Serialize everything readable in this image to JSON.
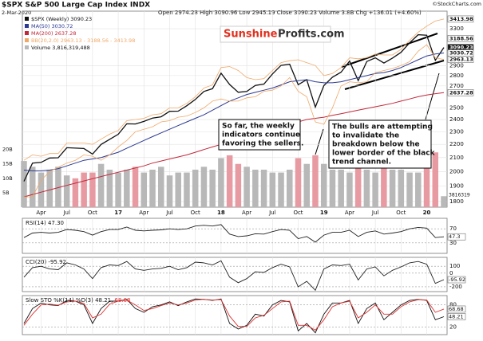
{
  "chart_data": [
    {
      "type": "line",
      "title": "$SPX S&P 500 Large Cap Index INDX",
      "subtitle": "2-Mar-2020",
      "quote": "Open 2974.28 High 3090.96 Low 2945.19 Close 3090.23 Volume 3.8B Chg +136.01 (+4.60%)",
      "credit": "©StockCharts.com",
      "log_scale": true,
      "ylim": [
        1765,
        3510
      ],
      "yticks": [
        1800,
        1900,
        2000,
        2100,
        2200,
        2300,
        2400,
        2500,
        2700,
        2800,
        2900,
        3300
      ],
      "grid": true,
      "price_tags": [
        3413.98,
        3188.56,
        3090.23,
        3030.72,
        2963.13,
        2637.28
      ],
      "categories": [
        null,
        null,
        "Apr",
        null,
        null,
        "Jul",
        null,
        null,
        "Oct",
        null,
        null,
        "17",
        null,
        null,
        "Apr",
        null,
        null,
        "Jul",
        null,
        null,
        "Oct",
        null,
        null,
        "18",
        null,
        null,
        "Apr",
        null,
        null,
        "Jul",
        null,
        null,
        "Oct",
        null,
        null,
        "19",
        null,
        null,
        "Apr",
        null,
        null,
        "Jul",
        null,
        null,
        "Oct",
        null,
        null,
        "20",
        null,
        null
      ],
      "series": [
        {
          "name": "$SPX (Weekly) 3090.23",
          "color": "#111111",
          "width": 1.3,
          "values": [
            1932,
            2060,
            2065,
            2097,
            2099,
            2174,
            2171,
            2168,
            2126,
            2199,
            2239,
            2279,
            2364,
            2363,
            2384,
            2412,
            2423,
            2470,
            2472,
            2519,
            2575,
            2648,
            2674,
            2824,
            2714,
            2641,
            2648,
            2705,
            2718,
            2816,
            2902,
            2914,
            2712,
            2760,
            2507,
            2704,
            2784,
            2834,
            2946,
            2752,
            2942,
            2980,
            2926,
            2977,
            3038,
            3141,
            3231,
            3226,
            2954,
            3090.23
          ]
        },
        {
          "name": "MA(50) 3030.72",
          "color": "#2b3990",
          "width": 1,
          "values": [
            2010,
            2005,
            2005,
            2010,
            2020,
            2040,
            2060,
            2080,
            2090,
            2100,
            2120,
            2140,
            2170,
            2200,
            2230,
            2260,
            2290,
            2320,
            2350,
            2380,
            2410,
            2440,
            2480,
            2520,
            2560,
            2590,
            2620,
            2640,
            2660,
            2680,
            2710,
            2740,
            2750,
            2760,
            2740,
            2730,
            2730,
            2740,
            2760,
            2780,
            2800,
            2820,
            2830,
            2850,
            2880,
            2920,
            2960,
            3000,
            3020,
            3030.72
          ]
        },
        {
          "name": "MA(200) 2637.28",
          "color": "#c0283a",
          "width": 1,
          "values": [
            1830,
            1845,
            1860,
            1875,
            1890,
            1905,
            1920,
            1935,
            1950,
            1965,
            1980,
            1995,
            2010,
            2025,
            2040,
            2060,
            2075,
            2090,
            2105,
            2120,
            2140,
            2160,
            2180,
            2200,
            2220,
            2240,
            2260,
            2280,
            2300,
            2320,
            2340,
            2360,
            2380,
            2400,
            2410,
            2420,
            2435,
            2450,
            2465,
            2480,
            2495,
            2510,
            2525,
            2540,
            2560,
            2580,
            2600,
            2615,
            2628,
            2637.28
          ]
        },
        {
          "name": "BB(20,2.0) 2963.13 - 3188.56 - 3413.98",
          "color": "#f0a868",
          "width": 0.8,
          "values": [
            2080,
            2120,
            2110,
            2130,
            2130,
            2210,
            2210,
            2210,
            2200,
            2240,
            2280,
            2310,
            2390,
            2400,
            2410,
            2440,
            2450,
            2500,
            2500,
            2540,
            2600,
            2680,
            2710,
            2880,
            2890,
            2850,
            2780,
            2760,
            2770,
            2850,
            2930,
            2950,
            2960,
            2930,
            2900,
            2800,
            2820,
            2880,
            2980,
            2970,
            2980,
            3020,
            3010,
            3010,
            3070,
            3170,
            3260,
            3330,
            3390,
            3413.98
          ]
        },
        {
          "color": "#f0a868",
          "width": 0.8,
          "values": [
            1830,
            1830,
            1940,
            2000,
            2030,
            2060,
            2080,
            2120,
            2110,
            2080,
            2120,
            2180,
            2230,
            2300,
            2320,
            2340,
            2380,
            2390,
            2420,
            2430,
            2460,
            2500,
            2560,
            2580,
            2560,
            2560,
            2590,
            2600,
            2650,
            2660,
            2700,
            2780,
            2650,
            2600,
            2380,
            2360,
            2500,
            2700,
            2740,
            2730,
            2740,
            2830,
            2850,
            2870,
            2900,
            2940,
            3050,
            3120,
            2980,
            2963.13
          ]
        }
      ],
      "volume": {
        "name": "Volume 3,816,319,488",
        "up_color": "#b8b8b8",
        "down_color": "#e89aa2",
        "ylim": [
          0,
          21
        ],
        "yticks": [
          {
            "value": 5,
            "label": "5B"
          },
          {
            "value": 10,
            "label": "10B"
          },
          {
            "value": 15,
            "label": "15B"
          },
          {
            "value": 20,
            "label": "20B"
          }
        ],
        "tag": "3816319",
        "values": [
          16,
          14,
          12,
          13,
          14,
          11,
          10,
          12,
          12,
          15,
          13,
          12,
          13,
          14,
          12,
          13,
          14,
          11,
          12,
          12,
          13,
          14,
          13,
          17,
          18,
          15,
          14,
          13,
          13,
          12,
          12,
          13,
          17,
          15,
          18,
          15,
          13,
          13,
          12,
          16,
          13,
          12,
          15,
          13,
          13,
          12,
          12,
          14,
          19,
          3.8
        ]
      },
      "watermark": [
        "Sunshine",
        "Profits.com"
      ],
      "annotations": [
        [
          "So far, the weekly",
          "indicators continue",
          "favoring the sellers."
        ],
        [
          "The bulls are attempting",
          "to invalidate the",
          "breakdown below the",
          "lower border of the black",
          "trend channel."
        ]
      ]
    },
    {
      "type": "line",
      "title": "RSI(14) 47.30",
      "ylim": [
        0,
        100
      ],
      "yticks": [
        30,
        70
      ],
      "tags": [
        47.3
      ],
      "series": [
        {
          "color": "#222222",
          "values": [
            45,
            58,
            60,
            58,
            60,
            68,
            66,
            62,
            52,
            62,
            68,
            68,
            75,
            66,
            64,
            66,
            67,
            70,
            68,
            70,
            78,
            80,
            78,
            82,
            55,
            48,
            50,
            56,
            55,
            62,
            68,
            66,
            42,
            48,
            32,
            52,
            60,
            60,
            66,
            48,
            60,
            64,
            55,
            58,
            62,
            70,
            74,
            72,
            45,
            47.3
          ]
        }
      ]
    },
    {
      "type": "line",
      "title": "CCI(20) -95.92",
      "ylim": [
        -270,
        230
      ],
      "yticks": [
        -200,
        0,
        100
      ],
      "tags": [
        -95.92
      ],
      "series": [
        {
          "color": "#222222",
          "values": [
            -60,
            80,
            100,
            60,
            50,
            150,
            120,
            60,
            -80,
            80,
            120,
            110,
            170,
            60,
            40,
            60,
            70,
            100,
            50,
            80,
            160,
            150,
            120,
            180,
            -60,
            -140,
            -80,
            20,
            10,
            80,
            130,
            90,
            -200,
            -120,
            -250,
            60,
            120,
            110,
            130,
            -100,
            60,
            90,
            -40,
            40,
            90,
            150,
            170,
            130,
            -150,
            -95.92
          ]
        }
      ]
    },
    {
      "type": "line",
      "title": "Slow STO %K(14) %D(3) 48.21,",
      "title_extra": "68.68",
      "ylim": [
        0,
        105
      ],
      "yticks": [
        20,
        80
      ],
      "tags": [
        68.68,
        48.21
      ],
      "series": [
        {
          "color": "#111111",
          "values": [
            30,
            70,
            85,
            80,
            78,
            92,
            90,
            80,
            30,
            70,
            90,
            90,
            95,
            70,
            60,
            75,
            80,
            88,
            78,
            88,
            96,
            95,
            92,
            96,
            30,
            15,
            25,
            55,
            50,
            80,
            92,
            88,
            10,
            30,
            5,
            55,
            85,
            85,
            92,
            30,
            70,
            85,
            40,
            60,
            80,
            92,
            95,
            92,
            40,
            48.21
          ]
        },
        {
          "color": "#e03030",
          "values": [
            25,
            55,
            80,
            82,
            79,
            88,
            90,
            84,
            45,
            55,
            82,
            90,
            93,
            80,
            65,
            70,
            78,
            85,
            80,
            85,
            93,
            95,
            93,
            94,
            50,
            22,
            22,
            45,
            52,
            70,
            88,
            90,
            25,
            25,
            12,
            40,
            75,
            85,
            90,
            45,
            60,
            80,
            55,
            55,
            75,
            88,
            94,
            93,
            60,
            68.68
          ]
        }
      ]
    }
  ]
}
